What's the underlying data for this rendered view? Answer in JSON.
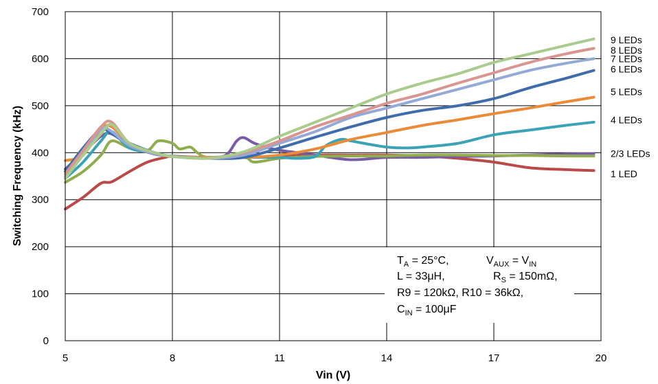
{
  "chart_data": {
    "type": "line",
    "xlabel": "Vin (V)",
    "ylabel": "Switching Frequency (kHz)",
    "xlim": [
      5,
      20
    ],
    "ylim": [
      0,
      700
    ],
    "x_ticks": [
      "5",
      "8",
      "11",
      "14",
      "17",
      "20"
    ],
    "y_ticks": [
      "0",
      "100",
      "200",
      "300",
      "400",
      "500",
      "600",
      "700"
    ],
    "grid": true,
    "legend": "right-side line labels",
    "series": [
      {
        "name": "1 LED",
        "color": "#b94a48",
        "points": [
          [
            5,
            280
          ],
          [
            5.5,
            305
          ],
          [
            6,
            335
          ],
          [
            6.3,
            338
          ],
          [
            6.8,
            360
          ],
          [
            7.3,
            380
          ],
          [
            7.8,
            390
          ],
          [
            8,
            392
          ],
          [
            9,
            388
          ],
          [
            10,
            390
          ],
          [
            11,
            393
          ],
          [
            12,
            395
          ],
          [
            13,
            395
          ],
          [
            14,
            395
          ],
          [
            15,
            393
          ],
          [
            16,
            388
          ],
          [
            17,
            380
          ],
          [
            18,
            368
          ],
          [
            19,
            364
          ],
          [
            19.8,
            362
          ]
        ]
      },
      {
        "name": "2/3 LEDs",
        "color": "#7b5aa6",
        "points": [
          [
            5,
            365
          ],
          [
            5.5,
            400
          ],
          [
            6,
            435
          ],
          [
            6.3,
            440
          ],
          [
            6.8,
            415
          ],
          [
            7.5,
            397
          ],
          [
            8,
            393
          ],
          [
            9,
            390
          ],
          [
            9.5,
            395
          ],
          [
            9.8,
            425
          ],
          [
            10,
            432
          ],
          [
            10.3,
            420
          ],
          [
            10.8,
            408
          ],
          [
            11.5,
            400
          ],
          [
            12,
            395
          ],
          [
            13,
            385
          ],
          [
            14,
            390
          ],
          [
            15,
            390
          ],
          [
            16,
            392
          ],
          [
            17,
            393
          ],
          [
            18,
            395
          ],
          [
            19,
            397
          ],
          [
            19.8,
            398
          ]
        ]
      },
      {
        "name": "2/3 LEDs",
        "color": "#8fad4d",
        "points": [
          [
            5,
            337
          ],
          [
            5.5,
            360
          ],
          [
            6,
            395
          ],
          [
            6.3,
            425
          ],
          [
            6.8,
            410
          ],
          [
            7.3,
            405
          ],
          [
            7.6,
            425
          ],
          [
            8,
            420
          ],
          [
            8.2,
            408
          ],
          [
            8.5,
            412
          ],
          [
            8.7,
            400
          ],
          [
            9,
            390
          ],
          [
            10,
            390
          ],
          [
            10.3,
            380
          ],
          [
            11,
            388
          ],
          [
            12,
            392
          ],
          [
            13,
            393
          ],
          [
            14,
            393
          ],
          [
            15,
            395
          ],
          [
            16,
            395
          ],
          [
            17,
            394
          ],
          [
            18,
            394
          ],
          [
            19,
            393
          ],
          [
            19.8,
            393
          ]
        ]
      },
      {
        "name": "4 LEDs",
        "color": "#3aa3b6",
        "points": [
          [
            5,
            345
          ],
          [
            5.5,
            380
          ],
          [
            6,
            425
          ],
          [
            6.3,
            445
          ],
          [
            6.8,
            410
          ],
          [
            7.5,
            400
          ],
          [
            8,
            392
          ],
          [
            9,
            390
          ],
          [
            10,
            390
          ],
          [
            11,
            390
          ],
          [
            11.5,
            388
          ],
          [
            12,
            392
          ],
          [
            12.3,
            415
          ],
          [
            12.7,
            428
          ],
          [
            13,
            425
          ],
          [
            13.5,
            418
          ],
          [
            14,
            412
          ],
          [
            14.5,
            410
          ],
          [
            15,
            412
          ],
          [
            16,
            420
          ],
          [
            17,
            438
          ],
          [
            18,
            448
          ],
          [
            19,
            458
          ],
          [
            19.8,
            465
          ]
        ]
      },
      {
        "name": "5 LEDs",
        "color": "#e98c3a",
        "points": [
          [
            5,
            383
          ],
          [
            5.5,
            395
          ],
          [
            6,
            450
          ],
          [
            6.3,
            455
          ],
          [
            6.8,
            420
          ],
          [
            7.5,
            400
          ],
          [
            8,
            392
          ],
          [
            9,
            390
          ],
          [
            10,
            390
          ],
          [
            11,
            395
          ],
          [
            12,
            408
          ],
          [
            13,
            428
          ],
          [
            14,
            443
          ],
          [
            15,
            458
          ],
          [
            16,
            470
          ],
          [
            17,
            483
          ],
          [
            18,
            495
          ],
          [
            19,
            508
          ],
          [
            19.8,
            518
          ]
        ]
      },
      {
        "name": "6 LEDs",
        "color": "#3f6cab",
        "points": [
          [
            5,
            360
          ],
          [
            5.5,
            410
          ],
          [
            6,
            450
          ],
          [
            6.3,
            440
          ],
          [
            6.8,
            420
          ],
          [
            7.5,
            400
          ],
          [
            8,
            392
          ],
          [
            9,
            388
          ],
          [
            10,
            390
          ],
          [
            11,
            410
          ],
          [
            12,
            433
          ],
          [
            13,
            455
          ],
          [
            14,
            475
          ],
          [
            15,
            490
          ],
          [
            16,
            500
          ],
          [
            17,
            515
          ],
          [
            18,
            538
          ],
          [
            19,
            558
          ],
          [
            19.8,
            575
          ]
        ]
      },
      {
        "name": "7 LEDs",
        "color": "#93a9d6",
        "points": [
          [
            5,
            350
          ],
          [
            5.5,
            400
          ],
          [
            6,
            450
          ],
          [
            6.3,
            445
          ],
          [
            6.8,
            415
          ],
          [
            7.5,
            398
          ],
          [
            8,
            392
          ],
          [
            9,
            388
          ],
          [
            10,
            395
          ],
          [
            11,
            420
          ],
          [
            12,
            445
          ],
          [
            13,
            475
          ],
          [
            14,
            495
          ],
          [
            15,
            515
          ],
          [
            16,
            535
          ],
          [
            17,
            555
          ],
          [
            18,
            575
          ],
          [
            19,
            590
          ],
          [
            19.8,
            600
          ]
        ]
      },
      {
        "name": "8 LEDs",
        "color": "#d99590",
        "points": [
          [
            5,
            355
          ],
          [
            5.5,
            405
          ],
          [
            6,
            455
          ],
          [
            6.3,
            465
          ],
          [
            6.8,
            420
          ],
          [
            7.5,
            400
          ],
          [
            8,
            392
          ],
          [
            9,
            388
          ],
          [
            10,
            400
          ],
          [
            11,
            425
          ],
          [
            12,
            455
          ],
          [
            13,
            480
          ],
          [
            14,
            505
          ],
          [
            15,
            525
          ],
          [
            16,
            548
          ],
          [
            17,
            570
          ],
          [
            18,
            592
          ],
          [
            19,
            610
          ],
          [
            19.8,
            622
          ]
        ]
      },
      {
        "name": "9 LEDs",
        "color": "#a9cc8c",
        "points": [
          [
            5,
            345
          ],
          [
            5.5,
            395
          ],
          [
            6,
            440
          ],
          [
            6.3,
            460
          ],
          [
            6.8,
            420
          ],
          [
            7.5,
            400
          ],
          [
            8,
            392
          ],
          [
            9,
            388
          ],
          [
            10,
            402
          ],
          [
            11,
            435
          ],
          [
            12,
            465
          ],
          [
            13,
            495
          ],
          [
            14,
            525
          ],
          [
            15,
            548
          ],
          [
            16,
            568
          ],
          [
            17,
            592
          ],
          [
            18,
            610
          ],
          [
            19,
            628
          ],
          [
            19.8,
            642
          ]
        ]
      }
    ],
    "line_labels": [
      {
        "text": "9 LEDs",
        "y": 640
      },
      {
        "text": "8 LEDs",
        "y": 618
      },
      {
        "text": "7 LEDs",
        "y": 600
      },
      {
        "text": "6 LEDs",
        "y": 578
      },
      {
        "text": "5 LEDs",
        "y": 530
      },
      {
        "text": "4 LEDs",
        "y": 470
      },
      {
        "text": "2/3 LEDs",
        "y": 398
      },
      {
        "text": "1 LED",
        "y": 355
      }
    ],
    "annotation": {
      "line1": {
        "a_main": "T",
        "a_sub": "A",
        "a_rest": " = 25°C,",
        "b_main": "V",
        "b_sub": "AUX",
        "b_mid": " = V",
        "b_sub2": "IN"
      },
      "line2": {
        "a": "L = 33μH,",
        "b_main": "R",
        "b_sub": "S",
        "b_rest": " = 150mΩ,"
      },
      "line3": "R9 = 120kΩ, R10 = 36kΩ,",
      "line4": {
        "main": "C",
        "sub": "IN",
        "rest": " = 100μF"
      }
    }
  }
}
